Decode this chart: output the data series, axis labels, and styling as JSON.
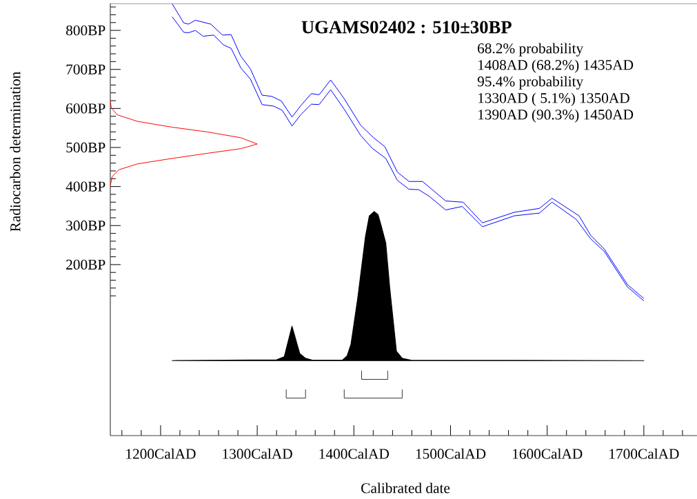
{
  "chart_data": {
    "type": "line",
    "title": "UGAMS02402 : 510±30BP",
    "xlabel": "Calibrated date",
    "ylabel": "Radiocarbon determination",
    "annotations": [
      "68.2% probability",
      "1408AD (68.2%) 1435AD",
      "95.4% probability",
      "1330AD ( 5.1%) 1350AD",
      "1390AD (90.3%) 1450AD"
    ],
    "xlim": [
      1148,
      1755
    ],
    "ylim": [
      -238,
      869
    ],
    "xticks": [
      {
        "value": 1160,
        "label": null
      },
      {
        "value": 1180,
        "label": null
      },
      {
        "value": 1200,
        "label": "1200CalAD"
      },
      {
        "value": 1220,
        "label": null
      },
      {
        "value": 1240,
        "label": null
      },
      {
        "value": 1260,
        "label": null
      },
      {
        "value": 1280,
        "label": null
      },
      {
        "value": 1300,
        "label": "1300CalAD"
      },
      {
        "value": 1320,
        "label": null
      },
      {
        "value": 1340,
        "label": null
      },
      {
        "value": 1360,
        "label": null
      },
      {
        "value": 1380,
        "label": null
      },
      {
        "value": 1400,
        "label": "1400CalAD"
      },
      {
        "value": 1420,
        "label": null
      },
      {
        "value": 1440,
        "label": null
      },
      {
        "value": 1460,
        "label": null
      },
      {
        "value": 1480,
        "label": null
      },
      {
        "value": 1500,
        "label": "1500CalAD"
      },
      {
        "value": 1520,
        "label": null
      },
      {
        "value": 1540,
        "label": null
      },
      {
        "value": 1560,
        "label": null
      },
      {
        "value": 1580,
        "label": null
      },
      {
        "value": 1600,
        "label": "1600CalAD"
      },
      {
        "value": 1620,
        "label": null
      },
      {
        "value": 1640,
        "label": null
      },
      {
        "value": 1660,
        "label": null
      },
      {
        "value": 1680,
        "label": null
      },
      {
        "value": 1700,
        "label": "1700CalAD"
      },
      {
        "value": 1720,
        "label": null
      },
      {
        "value": 1740,
        "label": null
      }
    ],
    "yticks": [
      {
        "value": 120,
        "label": null
      },
      {
        "value": 140,
        "label": null
      },
      {
        "value": 160,
        "label": null
      },
      {
        "value": 180,
        "label": null
      },
      {
        "value": 200,
        "label": "200BP"
      },
      {
        "value": 220,
        "label": null
      },
      {
        "value": 240,
        "label": null
      },
      {
        "value": 260,
        "label": null
      },
      {
        "value": 280,
        "label": null
      },
      {
        "value": 300,
        "label": "300BP"
      },
      {
        "value": 320,
        "label": null
      },
      {
        "value": 340,
        "label": null
      },
      {
        "value": 360,
        "label": null
      },
      {
        "value": 380,
        "label": null
      },
      {
        "value": 400,
        "label": "400BP"
      },
      {
        "value": 420,
        "label": null
      },
      {
        "value": 440,
        "label": null
      },
      {
        "value": 460,
        "label": null
      },
      {
        "value": 480,
        "label": null
      },
      {
        "value": 500,
        "label": "500BP"
      },
      {
        "value": 520,
        "label": null
      },
      {
        "value": 540,
        "label": null
      },
      {
        "value": 560,
        "label": null
      },
      {
        "value": 580,
        "label": null
      },
      {
        "value": 600,
        "label": "600BP"
      },
      {
        "value": 620,
        "label": null
      },
      {
        "value": 640,
        "label": null
      },
      {
        "value": 660,
        "label": null
      },
      {
        "value": 680,
        "label": null
      },
      {
        "value": 700,
        "label": "700BP"
      },
      {
        "value": 720,
        "label": null
      },
      {
        "value": 740,
        "label": null
      },
      {
        "value": 760,
        "label": null
      },
      {
        "value": 780,
        "label": null
      },
      {
        "value": 800,
        "label": "800BP"
      },
      {
        "value": 820,
        "label": null
      },
      {
        "value": 840,
        "label": null
      },
      {
        "value": 860,
        "label": null
      }
    ],
    "grid": false,
    "legend": false,
    "marker": "none",
    "line_style": "solid",
    "series": [
      {
        "color": "#0000ff",
        "x": [
          1212,
          1224,
          1229,
          1236,
          1252,
          1264,
          1273,
          1283,
          1293,
          1305,
          1315,
          1325,
          1336,
          1345,
          1356,
          1364,
          1376,
          1390,
          1407,
          1420,
          1432,
          1445,
          1457,
          1471,
          1495,
          1513,
          1533,
          1566,
          1592,
          1605,
          1633,
          1645,
          1659,
          1683,
          1700
        ],
        "values": [
          868,
          819,
          816,
          826,
          816,
          788,
          789,
          734,
          701,
          634,
          631,
          619,
          578,
          607,
          638,
          635,
          673,
          625,
          557,
          526,
          502,
          437,
          413,
          413,
          363,
          360,
          307,
          334,
          344,
          370,
          325,
          275,
          240,
          149,
          113
        ]
      },
      {
        "color": "#0000ff",
        "x": [
          1212,
          1224,
          1229,
          1236,
          1244,
          1255,
          1265,
          1273,
          1283,
          1293,
          1305,
          1317,
          1326,
          1336,
          1345,
          1356,
          1364,
          1376,
          1390,
          1407,
          1419,
          1433,
          1445,
          1457,
          1467,
          1478,
          1495,
          1512,
          1533,
          1566,
          1592,
          1605,
          1630,
          1645,
          1659,
          1683,
          1700
        ],
        "values": [
          835,
          795,
          794,
          800,
          785,
          788,
          763,
          754,
          704,
          675,
          610,
          606,
          595,
          555,
          584,
          611,
          610,
          648,
          598,
          531,
          498,
          472,
          416,
          393,
          392,
          375,
          340,
          349,
          297,
          325,
          332,
          360,
          316,
          266,
          234,
          143,
          107
        ]
      },
      {
        "color": "#ff0000",
        "x": [
          1148,
          1149,
          1155,
          1176,
          1212,
          1248,
          1283,
          1300,
          1283,
          1248,
          1212,
          1176,
          1157,
          1150,
          1148
        ],
        "values": [
          619,
          602,
          584,
          567,
          552,
          540,
          525,
          509,
          497,
          485,
          472,
          458,
          443,
          426,
          402
        ]
      },
      {
        "type": "area",
        "color": "#000000",
        "x": [
          1212,
          1320,
          1328,
          1336,
          1344,
          1350,
          1357,
          1388,
          1393,
          1397,
          1404,
          1412,
          1416,
          1421,
          1425,
          1428,
          1433,
          1437,
          1444,
          1450,
          1459,
          1700
        ],
        "values": [
          -46,
          -44,
          -36,
          42,
          -28,
          -40,
          -45,
          -45,
          -34,
          -4,
          114,
          272,
          325,
          336,
          328,
          302,
          255,
          143,
          -22,
          -40,
          -45,
          -46
        ]
      },
      {
        "color": "#333333",
        "x": [
          1408,
          1408,
          1435,
          1435
        ],
        "values": [
          -72,
          -94,
          -94,
          -72
        ]
      },
      {
        "color": "#333333",
        "x": [
          1330,
          1330,
          1350,
          1350
        ],
        "values": [
          -120,
          -142,
          -142,
          -120
        ]
      },
      {
        "color": "#333333",
        "x": [
          1390,
          1390,
          1450,
          1450
        ],
        "values": [
          -120,
          -142,
          -142,
          -120
        ]
      }
    ]
  }
}
